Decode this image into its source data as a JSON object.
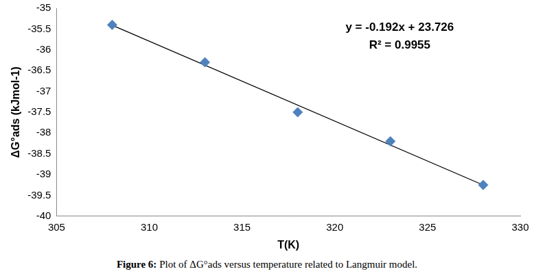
{
  "chart_data": {
    "type": "scatter",
    "x_label": "T(K)",
    "y_label": "ΔG°ads (kJmol-1)",
    "caption": "Figure 6: Plot of ΔG°ads versus temperature related to Langmuir model.",
    "annotations": [
      "y = -0.192x + 23.726",
      "R² = 0.9955"
    ],
    "xlim": [
      305,
      330
    ],
    "xticks": [
      305,
      310,
      315,
      320,
      325,
      330
    ],
    "ylim": [
      -40,
      -35
    ],
    "yticks": [
      -40,
      -39.5,
      -39,
      -38.5,
      -38,
      -37.5,
      -37,
      -36.5,
      -36,
      -35.5,
      -35
    ],
    "grid": false,
    "series": [
      {
        "type": "scatter",
        "color": "#4f81bd",
        "marker": "diamond",
        "x": [
          308,
          313,
          318,
          323,
          328
        ],
        "values": [
          -35.4,
          -36.3,
          -37.5,
          -38.2,
          -39.25
        ]
      },
      {
        "type": "line",
        "color": "#000000",
        "line_style": "solid",
        "x": [
          308,
          328
        ],
        "values": [
          -35.41,
          -39.25
        ]
      }
    ]
  }
}
